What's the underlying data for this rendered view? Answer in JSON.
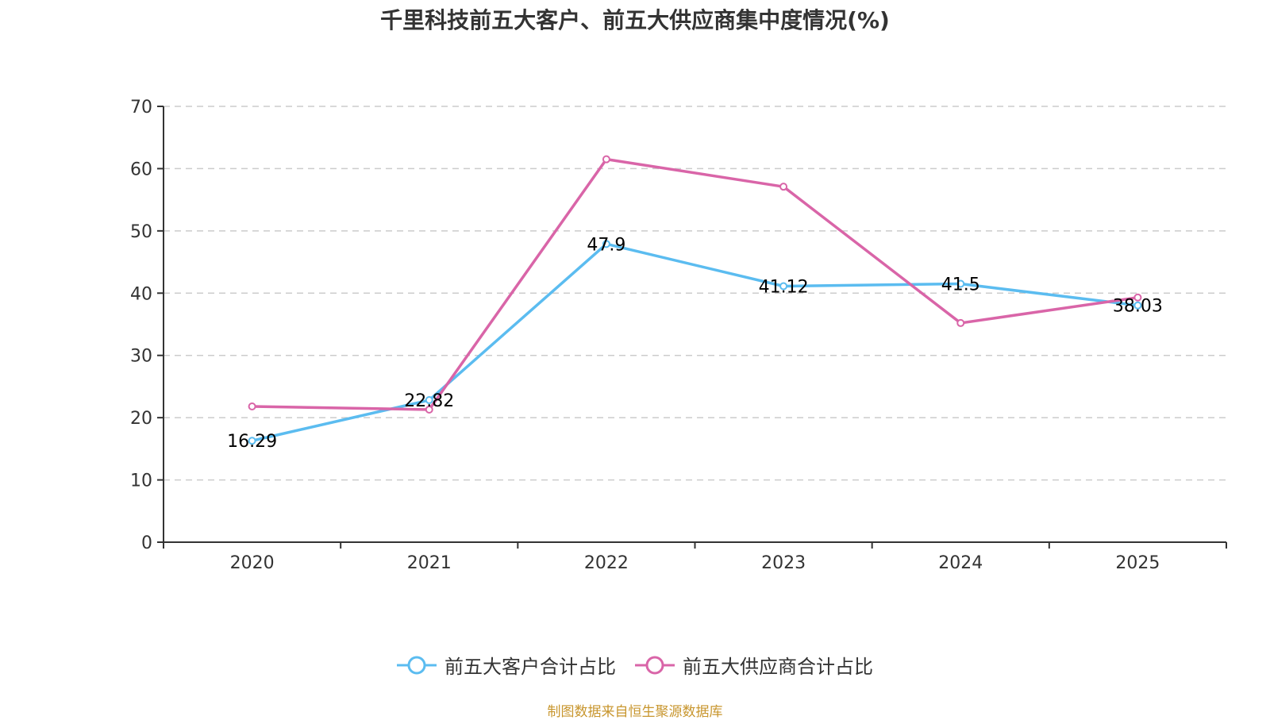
{
  "chart_data": {
    "type": "line",
    "title": "千里科技前五大客户、前五大供应商集中度情况(%)",
    "xlabel": "",
    "ylabel": "",
    "categories": [
      "2020",
      "2021",
      "2022",
      "2023",
      "2024",
      "2025"
    ],
    "ylim": [
      0,
      70
    ],
    "yticks": [
      0,
      10,
      20,
      30,
      40,
      50,
      60,
      70
    ],
    "grid": true,
    "legend_position": "bottom-center",
    "series": [
      {
        "name": "前五大客户合计占比",
        "color": "#5bbcf0",
        "values": [
          16.29,
          22.82,
          47.9,
          41.12,
          41.5,
          38.03
        ],
        "show_labels": true
      },
      {
        "name": "前五大供应商合计占比",
        "color": "#d965a8",
        "values": [
          21.8,
          21.3,
          61.5,
          57.1,
          35.2,
          39.3
        ],
        "show_labels": false
      }
    ]
  },
  "footer": {
    "source_text": "制图数据来自恒生聚源数据库"
  }
}
